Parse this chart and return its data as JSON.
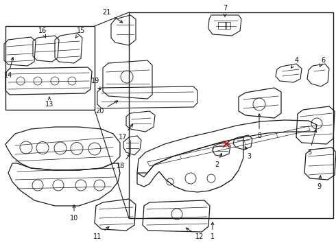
{
  "bg_color": "#ffffff",
  "line_color": "#1a1a1a",
  "red_color": "#cc0000",
  "figsize": [
    4.9,
    3.6
  ],
  "dpi": 100
}
